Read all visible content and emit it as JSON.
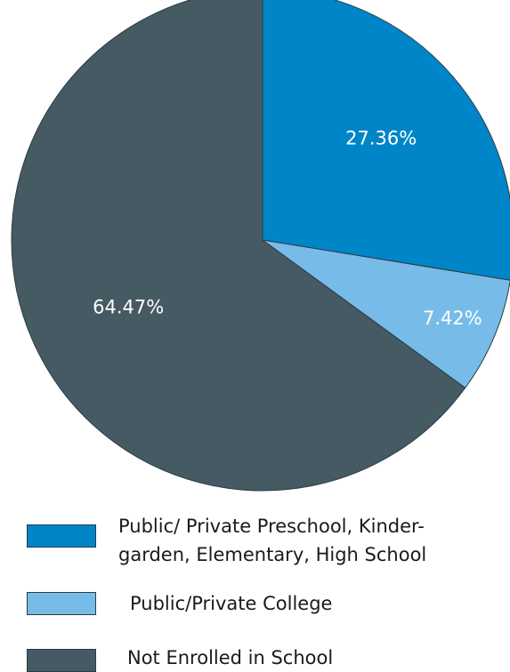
{
  "chart_data": {
    "type": "pie",
    "slices": [
      {
        "label": "Public/ Private Preschool, Kinder-\ngarden, Elementary, High School",
        "value": 27.36,
        "value_label": "27.36%",
        "color": "#0185c9"
      },
      {
        "label": "Public/Private College",
        "value": 7.42,
        "value_label": "7.42%",
        "color": "#77bce8"
      },
      {
        "label": "Not Enrolled in School",
        "value": 64.47,
        "value_label": "64.47%",
        "color": "#465a63"
      }
    ],
    "start": "12 o'clock",
    "direction": "clockwise",
    "legend_placement": "bottom"
  }
}
